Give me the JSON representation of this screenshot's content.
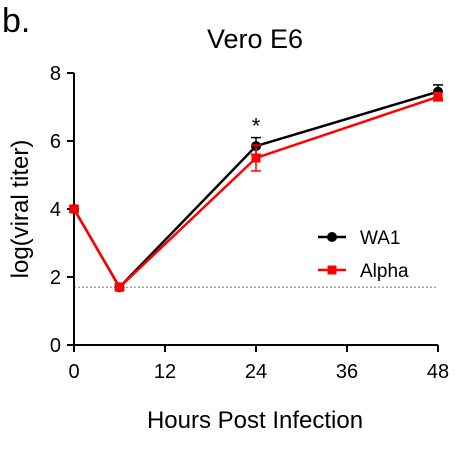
{
  "panel_label": "b.",
  "chart_data": {
    "type": "line",
    "title": "Vero E6",
    "xlabel": "Hours Post Infection",
    "ylabel": "log(viral titer)",
    "x": [
      0,
      6,
      24,
      48
    ],
    "xticks": [
      0,
      12,
      24,
      36,
      48
    ],
    "yticks": [
      0,
      2,
      4,
      6,
      8
    ],
    "xlim": [
      0,
      48
    ],
    "ylim": [
      0,
      8
    ],
    "series": [
      {
        "name": "WA1",
        "color": "#000000",
        "marker": "circle",
        "values": [
          4.0,
          1.7,
          5.85,
          7.45
        ],
        "errors": [
          0.08,
          0.08,
          0.25,
          0.2
        ]
      },
      {
        "name": "Alpha",
        "color": "#ff0000",
        "marker": "square",
        "values": [
          4.0,
          1.7,
          5.5,
          7.3
        ],
        "errors": [
          0.08,
          0.08,
          0.38,
          0.12
        ]
      }
    ],
    "reference_line": {
      "y": 1.7,
      "style": "dotted",
      "color": "#888888"
    },
    "annotations": [
      {
        "x": 24,
        "text": "*"
      }
    ],
    "legend_position": "center-right",
    "grid": false
  }
}
